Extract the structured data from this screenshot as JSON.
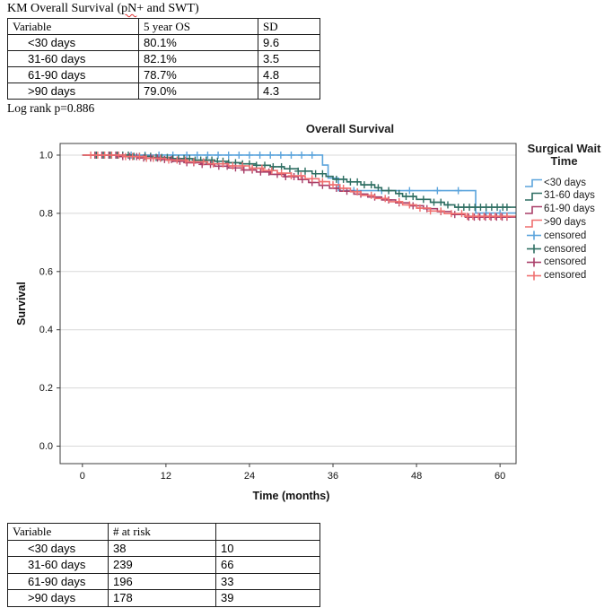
{
  "doc": {
    "title_prefix": "KM Overall Survival (",
    "title_misspelled": "pN",
    "title_suffix": "+ and SWT)",
    "log_rank": "Log rank p=0.886"
  },
  "os_table": {
    "headers": [
      "Variable",
      "5 year OS",
      "SD"
    ],
    "rows": [
      [
        "<30 days",
        "80.1%",
        "9.6"
      ],
      [
        "31-60 days",
        "82.1%",
        "3.5"
      ],
      [
        "61-90 days",
        "78.7%",
        "4.8"
      ],
      [
        ">90 days",
        "79.0%",
        "4.3"
      ]
    ]
  },
  "risk_table": {
    "headers": [
      "Variable",
      "# at risk",
      ""
    ],
    "rows": [
      [
        "<30 days",
        "38",
        "10"
      ],
      [
        "31-60 days",
        "239",
        "66"
      ],
      [
        "61-90 days",
        "196",
        "33"
      ],
      [
        ">90 days",
        "178",
        "39"
      ]
    ]
  },
  "chart_data": {
    "type": "line",
    "subtype": "kaplan-meier-step",
    "title": "Overall Survival",
    "xlabel": "Time (months)",
    "ylabel": "Survival",
    "xticks": [
      0,
      12,
      24,
      36,
      48,
      60
    ],
    "yticks": [
      0.0,
      0.2,
      0.4,
      0.6,
      0.8,
      1.0
    ],
    "xlim": [
      -3.2,
      62.3
    ],
    "ylim": [
      -0.06,
      1.04
    ],
    "grid": true,
    "legend_position": "right",
    "legend_title": "Surgical Wait Time",
    "censored_label": "censored",
    "axis_color": "#3c3c3c",
    "grid_color": "#d8d8d8",
    "series": [
      {
        "name": "<30 days",
        "color": "#5ba4dc",
        "steps": [
          [
            0,
            1.0
          ],
          [
            34.5,
            0.966
          ],
          [
            35.3,
            0.921
          ],
          [
            36.8,
            0.878
          ],
          [
            56.5,
            0.801
          ]
        ],
        "censored": [
          3,
          5,
          7,
          9,
          11,
          13,
          15,
          16.5,
          18,
          19.5,
          21,
          22.5,
          24,
          25.5,
          27,
          28.5,
          30,
          31.5,
          33,
          39,
          43,
          47,
          51,
          54,
          58,
          60
        ]
      },
      {
        "name": "31-60 days",
        "color": "#2e6e62",
        "steps": [
          [
            0,
            1.0
          ],
          [
            7,
            0.996
          ],
          [
            10,
            0.992
          ],
          [
            13,
            0.988
          ],
          [
            16,
            0.983
          ],
          [
            19,
            0.979
          ],
          [
            21,
            0.974
          ],
          [
            23,
            0.97
          ],
          [
            25,
            0.965
          ],
          [
            27,
            0.96
          ],
          [
            29,
            0.953
          ],
          [
            31,
            0.945
          ],
          [
            33,
            0.936
          ],
          [
            35,
            0.927
          ],
          [
            36,
            0.917
          ],
          [
            38,
            0.908
          ],
          [
            40,
            0.898
          ],
          [
            42,
            0.888
          ],
          [
            43,
            0.878
          ],
          [
            45,
            0.868
          ],
          [
            46,
            0.858
          ],
          [
            48,
            0.848
          ],
          [
            50,
            0.838
          ],
          [
            52,
            0.829
          ],
          [
            53.5,
            0.821
          ]
        ],
        "censored": [
          2,
          3,
          4,
          5,
          5.8,
          6.6,
          7.4,
          8.2,
          9,
          9.8,
          10.6,
          11.4,
          12.2,
          13,
          13.8,
          14.6,
          15.4,
          16.2,
          17,
          17.8,
          18.6,
          19.4,
          20.2,
          21,
          22,
          23,
          24,
          25,
          26.2,
          27.4,
          28.6,
          29.8,
          31,
          32,
          33.5,
          34.5,
          36.5,
          37.5,
          38.5,
          39.5,
          40.5,
          41.5,
          42.5,
          44,
          45.5,
          46.5,
          47.5,
          49,
          50.5,
          51.5,
          52.5,
          54,
          54.8,
          55.6,
          56.4,
          57.2,
          58,
          58.8,
          59.6,
          60.4,
          61
        ]
      },
      {
        "name": "61-90 days",
        "color": "#a93e68",
        "steps": [
          [
            0,
            1.0
          ],
          [
            5,
            0.995
          ],
          [
            8,
            0.99
          ],
          [
            11,
            0.985
          ],
          [
            13,
            0.979
          ],
          [
            15,
            0.974
          ],
          [
            17,
            0.968
          ],
          [
            19,
            0.962
          ],
          [
            21,
            0.956
          ],
          [
            23,
            0.949
          ],
          [
            25,
            0.942
          ],
          [
            27,
            0.934
          ],
          [
            29,
            0.926
          ],
          [
            31,
            0.916
          ],
          [
            32.5,
            0.906
          ],
          [
            34,
            0.896
          ],
          [
            35.5,
            0.886
          ],
          [
            37,
            0.876
          ],
          [
            39,
            0.866
          ],
          [
            41,
            0.856
          ],
          [
            43,
            0.846
          ],
          [
            45,
            0.836
          ],
          [
            47,
            0.826
          ],
          [
            49,
            0.816
          ],
          [
            51,
            0.806
          ],
          [
            53,
            0.796
          ],
          [
            55,
            0.787
          ]
        ],
        "censored": [
          1.8,
          2.8,
          3.8,
          4.8,
          5.8,
          6.8,
          7.8,
          8.8,
          9.8,
          10.8,
          11.8,
          12.8,
          14,
          15,
          16,
          17.2,
          18.4,
          19.6,
          20.8,
          22,
          23.2,
          24.4,
          25.6,
          26.8,
          28,
          29.2,
          30.4,
          31.6,
          33,
          34.5,
          36.5,
          38,
          40,
          42,
          44,
          45.5,
          47.5,
          49.5,
          51.5,
          53.5,
          55.5,
          56.3,
          57.1,
          57.9,
          58.7,
          59.5,
          60.3,
          61
        ]
      },
      {
        "name": ">90 days",
        "color": "#ef6f6f",
        "steps": [
          [
            0,
            1.0
          ],
          [
            6,
            0.995
          ],
          [
            9,
            0.989
          ],
          [
            12,
            0.983
          ],
          [
            15,
            0.977
          ],
          [
            18,
            0.97
          ],
          [
            21,
            0.963
          ],
          [
            24,
            0.955
          ],
          [
            26,
            0.947
          ],
          [
            28,
            0.938
          ],
          [
            30,
            0.929
          ],
          [
            32,
            0.919
          ],
          [
            34,
            0.909
          ],
          [
            35.5,
            0.898
          ],
          [
            37,
            0.886
          ],
          [
            38.5,
            0.874
          ],
          [
            40,
            0.862
          ],
          [
            42,
            0.851
          ],
          [
            44,
            0.84
          ],
          [
            46,
            0.829
          ],
          [
            48,
            0.818
          ],
          [
            50,
            0.808
          ],
          [
            52,
            0.799
          ],
          [
            55,
            0.79
          ]
        ],
        "censored": [
          1.2,
          2.2,
          3.2,
          4.2,
          5.2,
          6.2,
          7.2,
          8.2,
          9.2,
          10.2,
          11.2,
          12.4,
          13.6,
          14.8,
          16,
          17.4,
          18.8,
          20.2,
          21.6,
          23,
          24.4,
          25.8,
          27.2,
          28.6,
          30,
          31.4,
          33,
          34.5,
          36,
          37.5,
          39.5,
          41.5,
          43.5,
          45.5,
          47,
          48.5,
          50,
          51.5,
          53,
          54.5,
          55.3,
          56.1,
          56.9,
          57.7,
          58.5,
          59.3,
          60.1,
          61
        ]
      }
    ]
  }
}
